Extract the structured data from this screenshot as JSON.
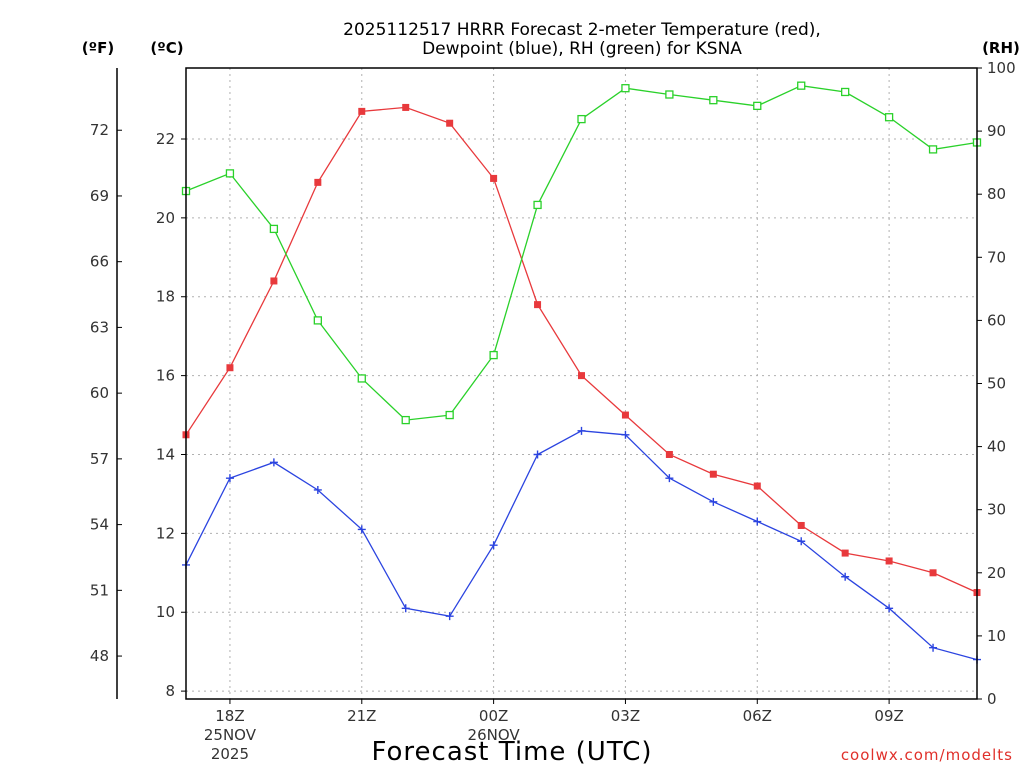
{
  "chart_data": {
    "type": "line",
    "title_line1": "2025112517 HRRR Forecast 2-meter Temperature (red),",
    "title_line2": "Dewpoint (blue), RH (green) for KSNA",
    "xlabel": "Forecast Time (UTC)",
    "credit": "coolwx.com/modelts",
    "units": {
      "fahrenheit": "(ºF)",
      "celsius": "(ºC)",
      "rh": "(RH)"
    },
    "x_hours": [
      17,
      18,
      19,
      20,
      21,
      22,
      23,
      24,
      25,
      26,
      27,
      28,
      29,
      30,
      31,
      32,
      33,
      34,
      35
    ],
    "xlim": [
      17,
      35
    ],
    "x_ticks": [
      {
        "hour": 18,
        "lines": [
          "18Z",
          "25NOV",
          "2025"
        ]
      },
      {
        "hour": 21,
        "lines": [
          "21Z"
        ]
      },
      {
        "hour": 24,
        "lines": [
          "00Z",
          "26NOV"
        ]
      },
      {
        "hour": 27,
        "lines": [
          "03Z"
        ]
      },
      {
        "hour": 30,
        "lines": [
          "06Z"
        ]
      },
      {
        "hour": 33,
        "lines": [
          "09Z"
        ]
      }
    ],
    "celsius_axis": {
      "ylim": [
        7.8,
        23.8
      ],
      "ticks": [
        8,
        10,
        12,
        14,
        16,
        18,
        20,
        22
      ]
    },
    "fahrenheit_axis": {
      "ticks": [
        48,
        51,
        54,
        57,
        60,
        63,
        66,
        69,
        72
      ]
    },
    "rh_axis": {
      "ylim": [
        0,
        100
      ],
      "ticks": [
        0,
        10,
        20,
        30,
        40,
        50,
        60,
        70,
        80,
        90,
        100
      ]
    },
    "series": [
      {
        "name": "Temperature",
        "color": "#e8393c",
        "axis": "celsius",
        "marker": "filled-square",
        "values": [
          14.5,
          16.2,
          18.4,
          20.9,
          22.7,
          22.8,
          22.4,
          21.0,
          17.8,
          16.0,
          15.0,
          14.0,
          13.5,
          13.2,
          12.2,
          11.5,
          11.3,
          11.0,
          10.5
        ]
      },
      {
        "name": "Dewpoint",
        "color": "#2b44e0",
        "axis": "celsius",
        "marker": "plus",
        "values": [
          11.2,
          13.4,
          13.8,
          13.1,
          12.1,
          10.1,
          9.9,
          11.7,
          14.0,
          14.6,
          14.5,
          13.4,
          12.8,
          12.3,
          11.8,
          10.9,
          10.1,
          9.1,
          8.8
        ]
      },
      {
        "name": "RH",
        "color": "#2ad12a",
        "axis": "rh",
        "marker": "open-square",
        "values": [
          80.5,
          83.3,
          74.5,
          60.0,
          50.8,
          44.2,
          45.0,
          54.5,
          78.3,
          91.9,
          96.8,
          95.8,
          94.9,
          94.0,
          97.2,
          96.2,
          92.2,
          87.1,
          88.2
        ]
      }
    ]
  }
}
